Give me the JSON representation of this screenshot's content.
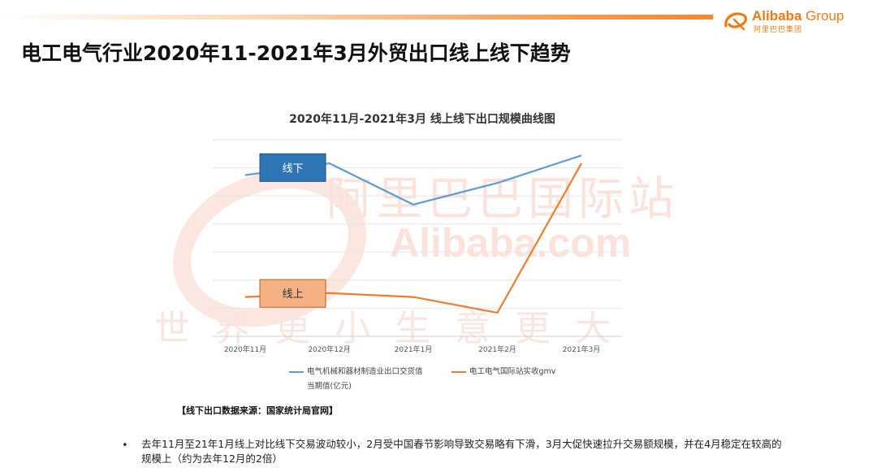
{
  "header": {
    "logo_brand_bold": "Alibaba",
    "logo_brand_light": " Group",
    "logo_cn": "阿里巴巴集团",
    "title": "电工电气行业2020年11-2021年3月外贸出口线上线下趋势"
  },
  "watermark": {
    "cn": "阿里巴巴国际站",
    "en": "Alibaba.com",
    "slogan": "世界更小生意更大"
  },
  "colors": {
    "offline_line": "#5b9bd5",
    "online_line": "#ed7d31",
    "offline_box": "#2e75b6",
    "online_box": "#f4b183",
    "accent": "#f07a12"
  },
  "chart_data": {
    "type": "line",
    "title": "2020年11月-2021年3月 线上线下出口规模曲线图",
    "categories": [
      "2020年11月",
      "2020年12月",
      "2021年1月",
      "2021年2月",
      "2021年3月"
    ],
    "series": [
      {
        "name": "电气机械和器材制造业出口交货值当期值(亿元)",
        "legend_line1": "电气机械和器材制造业出口交货值",
        "legend_line2": "当期值(亿元)",
        "box_label": "线下",
        "values": [
          82,
          88,
          67,
          78,
          92
        ]
      },
      {
        "name": "电工电气国际站实收gmv",
        "legend_line1": "电工电气国际站实收gmv",
        "box_label": "线上",
        "values": [
          20,
          22,
          20,
          12,
          88
        ]
      }
    ],
    "ylim": [
      0,
      100
    ],
    "grid": true,
    "legend_position": "bottom"
  },
  "source_note": "【线下出口数据来源：国家统计局官网】",
  "bullet_marker": "•",
  "bullet_text": "去年11月至21年1月线上对比线下交易波动较小，2月受中国春节影响导致交易略有下滑，3月大促快速拉升交易额规模，并在4月稳定在较高的规模上（约为去年12月的2倍）"
}
